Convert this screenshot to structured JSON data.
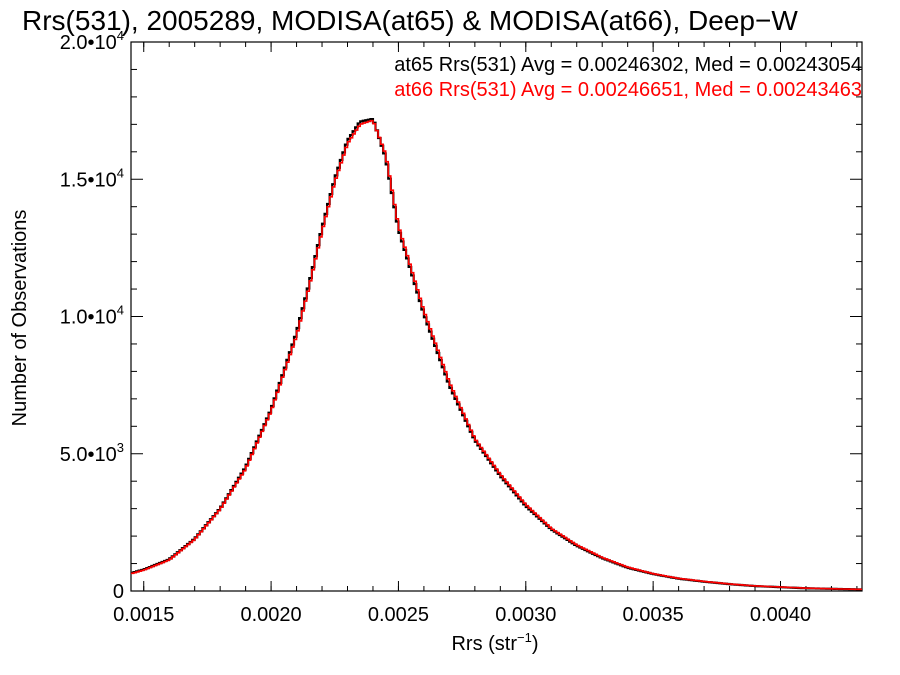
{
  "chart_data": {
    "type": "line",
    "title": "Rrs(531), 2005289, MODISA(at65) & MODISA(at66), Deep−W",
    "xlabel": "Rrs (str",
    "xlabel_sup": "−1",
    "xlabel_close": ")",
    "ylabel": "Number of Observations",
    "xlim": [
      0.00145,
      0.00432
    ],
    "ylim": [
      0,
      20000
    ],
    "x_ticks": [
      {
        "value": 0.0015,
        "label": "0.0015"
      },
      {
        "value": 0.002,
        "label": "0.0020"
      },
      {
        "value": 0.0025,
        "label": "0.0025"
      },
      {
        "value": 0.003,
        "label": "0.0030"
      },
      {
        "value": 0.0035,
        "label": "0.0035"
      },
      {
        "value": 0.004,
        "label": "0.0040"
      }
    ],
    "y_ticks": [
      {
        "value": 0,
        "mantissa": "0",
        "exp": ""
      },
      {
        "value": 5000,
        "mantissa": "5.0•10",
        "exp": "3"
      },
      {
        "value": 10000,
        "mantissa": "1.0•10",
        "exp": "4"
      },
      {
        "value": 15000,
        "mantissa": "1.5•10",
        "exp": "4"
      },
      {
        "value": 20000,
        "mantissa": "2.0•10",
        "exp": "4"
      }
    ],
    "grid": false,
    "legend_position": "top-right",
    "series": [
      {
        "name": "at65",
        "label": "at65 Rrs(531) Avg = 0.00246302, Med = 0.00243054",
        "color": "#000000",
        "x": [
          0.00145,
          0.0015,
          0.0016,
          0.0017,
          0.0018,
          0.0019,
          0.002,
          0.0021,
          0.00215,
          0.0022,
          0.00225,
          0.0023,
          0.00235,
          0.0024,
          0.00245,
          0.0025,
          0.0026,
          0.0027,
          0.0028,
          0.0029,
          0.003,
          0.0031,
          0.0032,
          0.0033,
          0.0034,
          0.0035,
          0.0036,
          0.0037,
          0.0038,
          0.0039,
          0.004,
          0.0041,
          0.0042,
          0.0043
        ],
        "y": [
          650,
          780,
          1150,
          1900,
          3000,
          4500,
          6600,
          9400,
          11200,
          13200,
          15000,
          16400,
          17100,
          17200,
          15800,
          13200,
          10100,
          7500,
          5500,
          4200,
          3100,
          2250,
          1650,
          1200,
          850,
          620,
          450,
          340,
          250,
          180,
          140,
          100,
          80,
          60
        ]
      },
      {
        "name": "at66",
        "label": "at66 Rrs(531) Avg = 0.00246651, Med = 0.00243463",
        "color": "#ff0000",
        "x": [
          0.00145,
          0.0015,
          0.0016,
          0.0017,
          0.0018,
          0.0019,
          0.002,
          0.0021,
          0.00215,
          0.0022,
          0.00225,
          0.0023,
          0.00235,
          0.0024,
          0.00245,
          0.0025,
          0.0026,
          0.0027,
          0.0028,
          0.0029,
          0.003,
          0.0031,
          0.0032,
          0.0033,
          0.0034,
          0.0035,
          0.0036,
          0.0037,
          0.0038,
          0.0039,
          0.004,
          0.0041,
          0.0042,
          0.0043
        ],
        "y": [
          630,
          760,
          1130,
          1880,
          2980,
          4450,
          6550,
          9300,
          11100,
          13100,
          14900,
          16300,
          17000,
          17150,
          15900,
          13300,
          10200,
          7600,
          5550,
          4250,
          3150,
          2280,
          1680,
          1220,
          870,
          630,
          460,
          350,
          255,
          185,
          145,
          105,
          82,
          62
        ]
      }
    ]
  }
}
